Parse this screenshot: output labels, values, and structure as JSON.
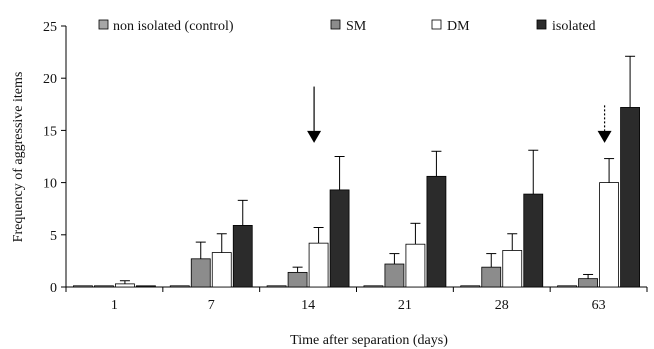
{
  "chart_data": {
    "type": "bar",
    "title": "",
    "xlabel": "Time after separation (days)",
    "ylabel": "Frequency of aggressive items",
    "categories": [
      "1",
      "7",
      "14",
      "21",
      "28",
      "63"
    ],
    "ylim": [
      0,
      25
    ],
    "yticks": [
      "0",
      "5",
      "10",
      "15",
      "20",
      "25"
    ],
    "grid": false,
    "legend_position": "top",
    "error_bars": "upper standard error",
    "series": [
      {
        "name": "non isolated (control)",
        "color": "#a6a6a6",
        "values": [
          0.1,
          0.1,
          0.1,
          0.1,
          0.1,
          0.1
        ],
        "errors": [
          0.0,
          0.0,
          0.0,
          0.0,
          0.0,
          0.0
        ]
      },
      {
        "name": "SM",
        "color": "#8c8c8c",
        "values": [
          0.1,
          2.7,
          1.4,
          2.2,
          1.9,
          0.8
        ],
        "errors": [
          0.0,
          1.6,
          0.5,
          1.0,
          1.3,
          0.4
        ]
      },
      {
        "name": "DM",
        "color": "#ffffff",
        "values": [
          0.3,
          3.3,
          4.2,
          4.1,
          3.5,
          10.0
        ],
        "errors": [
          0.3,
          1.8,
          1.5,
          2.0,
          1.6,
          2.3
        ]
      },
      {
        "name": "isolated",
        "color": "#2b2b2b",
        "values": [
          0.1,
          5.9,
          9.3,
          10.6,
          8.9,
          17.2
        ],
        "errors": [
          0.0,
          2.4,
          3.2,
          2.4,
          4.2,
          4.9
        ]
      }
    ],
    "annotations": [
      {
        "type": "arrow",
        "style": "solid",
        "category": "14",
        "from_y": 19.2,
        "to_y": 13.8
      },
      {
        "type": "arrow",
        "style": "dotted",
        "category": "63",
        "from_y": 17.4,
        "to_y": 13.8
      }
    ]
  }
}
